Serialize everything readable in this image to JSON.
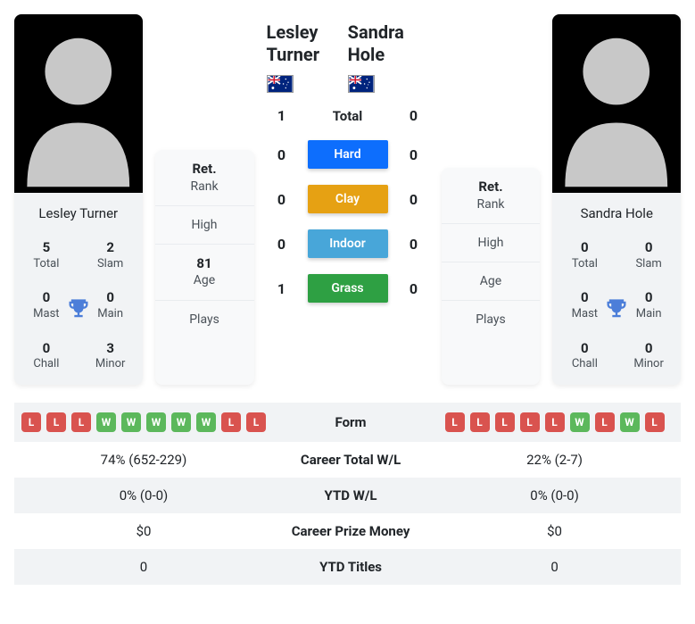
{
  "colors": {
    "hard": "#0d6efd",
    "clay": "#e6a113",
    "indoor": "#48a6d9",
    "grass": "#2ea043",
    "win_badge": "#5cb85c",
    "loss_badge": "#d9534f",
    "trophy": "#4c7ed9",
    "card_bg": "#f1f3f5",
    "stat_bg": "#f8f9fa",
    "row_alt": "#f1f3f5"
  },
  "player1": {
    "name": "Lesley Turner",
    "name_card": "Lesley Turner",
    "country": "AUS",
    "titles": {
      "total": "5",
      "slam": "2",
      "mast": "0",
      "main": "0",
      "chall": "0",
      "minor": "3"
    },
    "stats": {
      "rank": "Ret.",
      "high": "",
      "age": "81",
      "plays": ""
    }
  },
  "player2": {
    "name": "Sandra Hole",
    "name_card": "Sandra Hole",
    "country": "AUS",
    "titles": {
      "total": "0",
      "slam": "0",
      "mast": "0",
      "main": "0",
      "chall": "0",
      "minor": "0"
    },
    "stats": {
      "rank": "Ret.",
      "high": "",
      "age": "",
      "plays": ""
    }
  },
  "labels": {
    "total": "Total",
    "slam": "Slam",
    "mast": "Mast",
    "main": "Main",
    "chall": "Chall",
    "minor": "Minor",
    "rank": "Rank",
    "high": "High",
    "age": "Age",
    "plays": "Plays"
  },
  "h2h": {
    "total": {
      "label": "Total",
      "p1": "1",
      "p2": "0"
    },
    "hard": {
      "label": "Hard",
      "p1": "0",
      "p2": "0"
    },
    "clay": {
      "label": "Clay",
      "p1": "0",
      "p2": "0"
    },
    "indoor": {
      "label": "Indoor",
      "p1": "0",
      "p2": "0"
    },
    "grass": {
      "label": "Grass",
      "p1": "1",
      "p2": "0"
    }
  },
  "compare": {
    "form_label": "Form",
    "p1_form": [
      "L",
      "L",
      "L",
      "W",
      "W",
      "W",
      "W",
      "W",
      "L",
      "L"
    ],
    "p2_form": [
      "L",
      "L",
      "L",
      "L",
      "L",
      "W",
      "L",
      "W",
      "L"
    ],
    "career_wl": {
      "label": "Career Total W/L",
      "p1": "74% (652-229)",
      "p2": "22% (2-7)"
    },
    "ytd_wl": {
      "label": "YTD W/L",
      "p1": "0% (0-0)",
      "p2": "0% (0-0)"
    },
    "prize": {
      "label": "Career Prize Money",
      "p1": "$0",
      "p2": "$0"
    },
    "ytd_titles": {
      "label": "YTD Titles",
      "p1": "0",
      "p2": "0"
    }
  }
}
